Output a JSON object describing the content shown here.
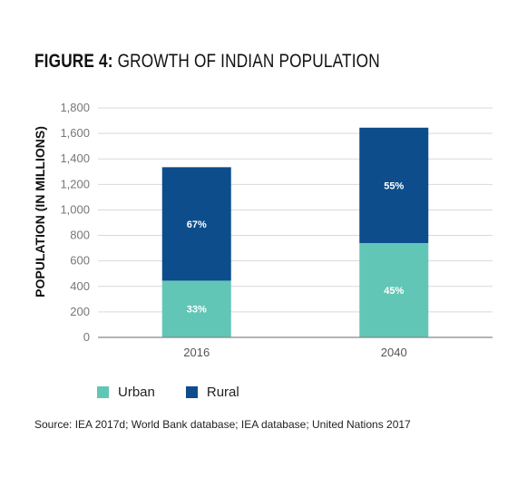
{
  "figure": {
    "label": "FIGURE 4:",
    "title": "GROWTH OF INDIAN POPULATION",
    "source": "Source: IEA 2017d; World Bank database; IEA database; United Nations 2017"
  },
  "chart_data": {
    "type": "bar",
    "stacked": true,
    "title": "FIGURE 4: GROWTH OF INDIAN POPULATION",
    "xlabel": "",
    "ylabel": "POPULATION (IN MILLIONS)",
    "categories": [
      "2016",
      "2040"
    ],
    "ylim": [
      0,
      1800
    ],
    "yticks": [
      0,
      200,
      400,
      600,
      800,
      1000,
      1200,
      1400,
      1600,
      1800
    ],
    "ytick_labels": [
      "0",
      "200",
      "400",
      "600",
      "800",
      "1,000",
      "1,200",
      "1,400",
      "1,600",
      "1,800"
    ],
    "series": [
      {
        "name": "Urban",
        "color": "#62c6b6",
        "values": [
          445,
          740
        ],
        "labels": [
          "33%",
          "45%"
        ]
      },
      {
        "name": "Rural",
        "color": "#0d4d8b",
        "values": [
          890,
          905
        ],
        "labels": [
          "67%",
          "55%"
        ]
      }
    ],
    "grid": true,
    "legend_position": "bottom-left"
  },
  "colors": {
    "urban": "#62c6b6",
    "rural": "#0d4d8b",
    "grid": "#d9d9d9",
    "axis": "#888888"
  }
}
